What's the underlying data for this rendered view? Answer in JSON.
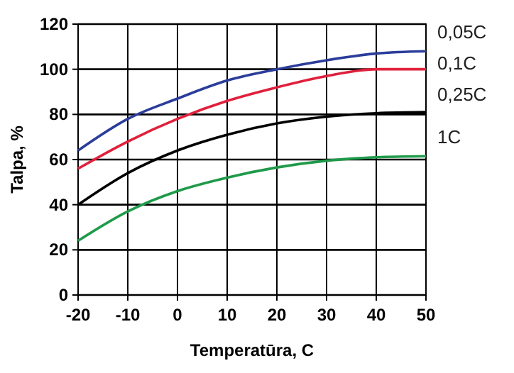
{
  "chart_data": {
    "type": "line",
    "xlabel": "Temperatūra, C",
    "ylabel": "Talpa, %",
    "x": [
      -20,
      -10,
      0,
      10,
      20,
      30,
      40,
      50
    ],
    "series": [
      {
        "name": "0,05C",
        "color": "#2b3d9a",
        "values": [
          64,
          78,
          87,
          95,
          100,
          104,
          107,
          108
        ]
      },
      {
        "name": "0,1C",
        "color": "#e0203c",
        "values": [
          56,
          68,
          78,
          86,
          92,
          97,
          100,
          100
        ]
      },
      {
        "name": "0,25C",
        "color": "#000000",
        "values": [
          40,
          54,
          64,
          71,
          76,
          79,
          80.5,
          81
        ]
      },
      {
        "name": "1C",
        "color": "#1f9a4a",
        "values": [
          24,
          37,
          46,
          52,
          56.5,
          59.5,
          61,
          61.5
        ]
      }
    ],
    "xlim": [
      -20,
      50
    ],
    "xticks": [
      -20,
      -10,
      0,
      10,
      20,
      30,
      40,
      50
    ],
    "ylim": [
      0,
      120
    ],
    "yticks": [
      0,
      20,
      40,
      60,
      80,
      100,
      120
    ],
    "grid": true,
    "marker": "none",
    "line_style": "solid"
  }
}
